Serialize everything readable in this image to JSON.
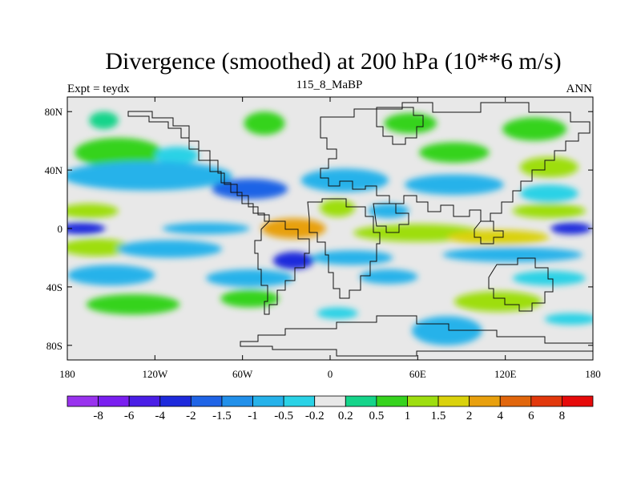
{
  "chart_data": {
    "type": "heatmap",
    "title": "Divergence (smoothed) at 200 hPa (10**6 m/s)",
    "subtitle_left": "Expt = teydx",
    "subtitle_center": "115_8_MaBP",
    "subtitle_right": "ANN",
    "x_ticks": [
      {
        "label": "180",
        "lon": -180
      },
      {
        "label": "120W",
        "lon": -120
      },
      {
        "label": "60W",
        "lon": -60
      },
      {
        "label": "0",
        "lon": 0
      },
      {
        "label": "60E",
        "lon": 60
      },
      {
        "label": "120E",
        "lon": 120
      },
      {
        "label": "180",
        "lon": 180
      }
    ],
    "y_ticks": [
      {
        "label": "80N",
        "lat": 80
      },
      {
        "label": "40N",
        "lat": 40
      },
      {
        "label": "0",
        "lat": 0
      },
      {
        "label": "40S",
        "lat": -40
      },
      {
        "label": "80S",
        "lat": -80
      }
    ],
    "xlim": [
      -180,
      180
    ],
    "ylim": [
      -90,
      90
    ],
    "colorbar": {
      "levels": [
        "-8",
        "-6",
        "-4",
        "-2",
        "-1.5",
        "-1",
        "-0.5",
        "-0.2",
        "0.2",
        "0.5",
        "1",
        "1.5",
        "2",
        "4",
        "6",
        "8"
      ],
      "colors": [
        "#9933ee",
        "#7a1ff0",
        "#4a1ee6",
        "#1e2adc",
        "#1f64e6",
        "#2290ea",
        "#26b2ea",
        "#2ad2e6",
        "#e8e8e8",
        "#15d48a",
        "#36d31e",
        "#9ede10",
        "#dad20c",
        "#e8a00e",
        "#e1660c",
        "#e2380c",
        "#e60a0a"
      ]
    },
    "field": [
      {
        "lon": -155,
        "lat": 74,
        "rx": 10,
        "ry": 6,
        "value": 0.4
      },
      {
        "lon": -45,
        "lat": 72,
        "rx": 14,
        "ry": 8,
        "value": 0.6
      },
      {
        "lon": 55,
        "lat": 72,
        "rx": 18,
        "ry": 7,
        "value": 0.6
      },
      {
        "lon": 140,
        "lat": 68,
        "rx": 22,
        "ry": 8,
        "value": 0.5
      },
      {
        "lon": -145,
        "lat": 52,
        "rx": 30,
        "ry": 10,
        "value": 0.8
      },
      {
        "lon": -105,
        "lat": 50,
        "rx": 15,
        "ry": 6,
        "value": -0.4
      },
      {
        "lon": 85,
        "lat": 52,
        "rx": 24,
        "ry": 7,
        "value": 0.7
      },
      {
        "lon": 150,
        "lat": 42,
        "rx": 20,
        "ry": 7,
        "value": 1.2
      },
      {
        "lon": -125,
        "lat": 36,
        "rx": 58,
        "ry": 10,
        "value": -0.7
      },
      {
        "lon": -55,
        "lat": 27,
        "rx": 26,
        "ry": 7,
        "value": -1.8
      },
      {
        "lon": 10,
        "lat": 33,
        "rx": 30,
        "ry": 8,
        "value": -0.7
      },
      {
        "lon": 85,
        "lat": 30,
        "rx": 34,
        "ry": 7,
        "value": -0.6
      },
      {
        "lon": 150,
        "lat": 24,
        "rx": 20,
        "ry": 6,
        "value": -0.4
      },
      {
        "lon": -165,
        "lat": 12,
        "rx": 20,
        "ry": 5,
        "value": 1.2
      },
      {
        "lon": 5,
        "lat": 14,
        "rx": 12,
        "ry": 6,
        "value": 1.3
      },
      {
        "lon": 40,
        "lat": 12,
        "rx": 14,
        "ry": 5,
        "value": -0.8
      },
      {
        "lon": 150,
        "lat": 12,
        "rx": 25,
        "ry": 5,
        "value": 1.3
      },
      {
        "lon": -170,
        "lat": 0,
        "rx": 16,
        "ry": 4,
        "value": -3.0
      },
      {
        "lon": 165,
        "lat": 0,
        "rx": 14,
        "ry": 4,
        "value": -3.0
      },
      {
        "lon": -85,
        "lat": 0,
        "rx": 30,
        "ry": 4,
        "value": -0.8
      },
      {
        "lon": -25,
        "lat": 0,
        "rx": 22,
        "ry": 7,
        "value": 2.4
      },
      {
        "lon": 60,
        "lat": -3,
        "rx": 44,
        "ry": 6,
        "value": 1.3
      },
      {
        "lon": 115,
        "lat": -6,
        "rx": 35,
        "ry": 5,
        "value": 1.8
      },
      {
        "lon": -160,
        "lat": -13,
        "rx": 24,
        "ry": 6,
        "value": 1.1
      },
      {
        "lon": -110,
        "lat": -14,
        "rx": 36,
        "ry": 6,
        "value": -0.8
      },
      {
        "lon": -25,
        "lat": -22,
        "rx": 14,
        "ry": 6,
        "value": -3.0
      },
      {
        "lon": 15,
        "lat": -20,
        "rx": 28,
        "ry": 5,
        "value": -0.7
      },
      {
        "lon": 125,
        "lat": -18,
        "rx": 48,
        "ry": 5,
        "value": -0.6
      },
      {
        "lon": -150,
        "lat": -32,
        "rx": 30,
        "ry": 7,
        "value": -0.9
      },
      {
        "lon": -55,
        "lat": -34,
        "rx": 30,
        "ry": 6,
        "value": -0.9
      },
      {
        "lon": 40,
        "lat": -33,
        "rx": 20,
        "ry": 5,
        "value": -0.6
      },
      {
        "lon": 150,
        "lat": -34,
        "rx": 25,
        "ry": 5,
        "value": -0.5
      },
      {
        "lon": -135,
        "lat": -52,
        "rx": 32,
        "ry": 7,
        "value": 0.9
      },
      {
        "lon": -55,
        "lat": -48,
        "rx": 20,
        "ry": 6,
        "value": 0.8
      },
      {
        "lon": 115,
        "lat": -50,
        "rx": 30,
        "ry": 7,
        "value": 1.0
      },
      {
        "lon": 165,
        "lat": -62,
        "rx": 18,
        "ry": 4,
        "value": -0.4
      },
      {
        "lon": 5,
        "lat": -58,
        "rx": 14,
        "ry": 4,
        "value": -0.5
      },
      {
        "lon": 80,
        "lat": -70,
        "rx": 24,
        "ry": 10,
        "value": -0.6
      }
    ]
  }
}
